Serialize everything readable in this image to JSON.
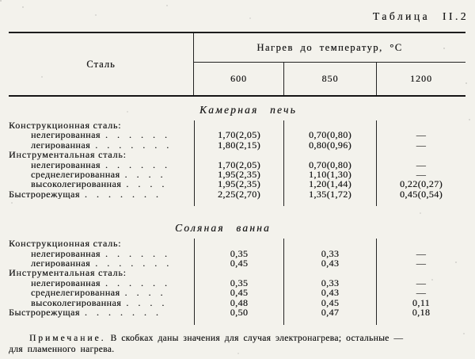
{
  "page": {
    "table_label": "Таблица II.2"
  },
  "table": {
    "steel_header": "Сталь",
    "group_header": "Нагрев до температур, °С",
    "temp_columns": [
      "600",
      "850",
      "1200"
    ],
    "sections": [
      {
        "title": "Камерная печь",
        "rows": [
          {
            "label": "Конструкционная сталь:",
            "indent": false,
            "category": true,
            "dots": "",
            "values": [
              "",
              "",
              ""
            ]
          },
          {
            "label": "нелегированная",
            "indent": true,
            "category": false,
            "dots": ". . . . . .",
            "values": [
              "1,70(2,05)",
              "0,70(0,80)",
              "—"
            ]
          },
          {
            "label": "легированная",
            "indent": true,
            "category": false,
            "dots": ". . . . . . .",
            "values": [
              "1,80(2,15)",
              "0,80(0,96)",
              "—"
            ]
          },
          {
            "label": "Инструментальная сталь:",
            "indent": false,
            "category": true,
            "dots": "",
            "values": [
              "",
              "",
              ""
            ]
          },
          {
            "label": "нелегированная",
            "indent": true,
            "category": false,
            "dots": ". . . . . .",
            "values": [
              "1,70(2,05)",
              "0,70(0,80)",
              "—"
            ]
          },
          {
            "label": "среднелегированная",
            "indent": true,
            "category": false,
            "dots": ". . . .",
            "values": [
              "1,95(2,35)",
              "1,10(1,30)",
              "—"
            ]
          },
          {
            "label": "высоколегированная",
            "indent": true,
            "category": false,
            "dots": ". . . .",
            "values": [
              "1,95(2,35)",
              "1,20(1,44)",
              "0,22(0,27)"
            ]
          },
          {
            "label": "Быстрорежущая",
            "indent": false,
            "category": false,
            "dots": ". . . . . . .",
            "values": [
              "2,25(2,70)",
              "1,35(1,72)",
              "0,45(0,54)"
            ]
          }
        ]
      },
      {
        "title": "Соляная ванна",
        "rows": [
          {
            "label": "Конструкционная сталь:",
            "indent": false,
            "category": true,
            "dots": "",
            "values": [
              "",
              "",
              ""
            ]
          },
          {
            "label": "нелегированная",
            "indent": true,
            "category": false,
            "dots": ". . . . . .",
            "values": [
              "0,35",
              "0,33",
              "—"
            ]
          },
          {
            "label": "легированная",
            "indent": true,
            "category": false,
            "dots": ". . . . . . .",
            "values": [
              "0,45",
              "0,43",
              "—"
            ]
          },
          {
            "label": "Инструментальная сталь:",
            "indent": false,
            "category": true,
            "dots": "",
            "values": [
              "",
              "",
              ""
            ]
          },
          {
            "label": "нелегированная",
            "indent": true,
            "category": false,
            "dots": ". . . . . .",
            "values": [
              "0,35",
              "0,33",
              "—"
            ]
          },
          {
            "label": "среднелегированная",
            "indent": true,
            "category": false,
            "dots": ". . . .",
            "values": [
              "0,45",
              "0,43",
              "—"
            ]
          },
          {
            "label": "высоколегированная",
            "indent": true,
            "category": false,
            "dots": ". . . .",
            "values": [
              "0,48",
              "0,45",
              "0,11"
            ]
          },
          {
            "label": "Быстрорежущая",
            "indent": false,
            "category": false,
            "dots": ". . . . . . .",
            "values": [
              "0,50",
              "0,47",
              "0,18"
            ]
          }
        ]
      }
    ]
  },
  "note": {
    "label": "Примечание.",
    "line1": "В скобках даны значения для случая электронагрева; остальные —",
    "line2": "для пламенного нагрева."
  }
}
